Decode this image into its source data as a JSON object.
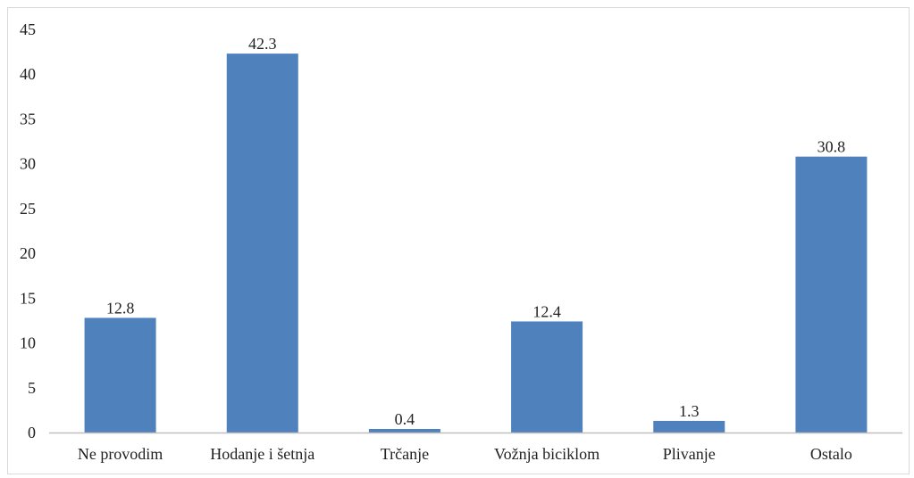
{
  "chart_data": {
    "type": "bar",
    "categories": [
      "Ne provodim",
      "Hodanje i šetnja",
      "Trčanje",
      "Vožnja biciklom",
      "Plivanje",
      "Ostalo"
    ],
    "values": [
      12.8,
      42.3,
      0.4,
      12.4,
      1.3,
      30.8
    ],
    "data_labels": [
      "12.8",
      "42.3",
      "0.4",
      "12.4",
      "1.3",
      "30.8"
    ],
    "title": "",
    "xlabel": "",
    "ylabel": "",
    "ylim": [
      0,
      45
    ],
    "yticks": [
      0,
      5,
      10,
      15,
      20,
      25,
      30,
      35,
      40,
      45
    ],
    "grid": false,
    "legend": "none",
    "colors": {
      "bar": "#4f81bd",
      "axis": "#bfbfbf",
      "text": "#222222"
    }
  }
}
